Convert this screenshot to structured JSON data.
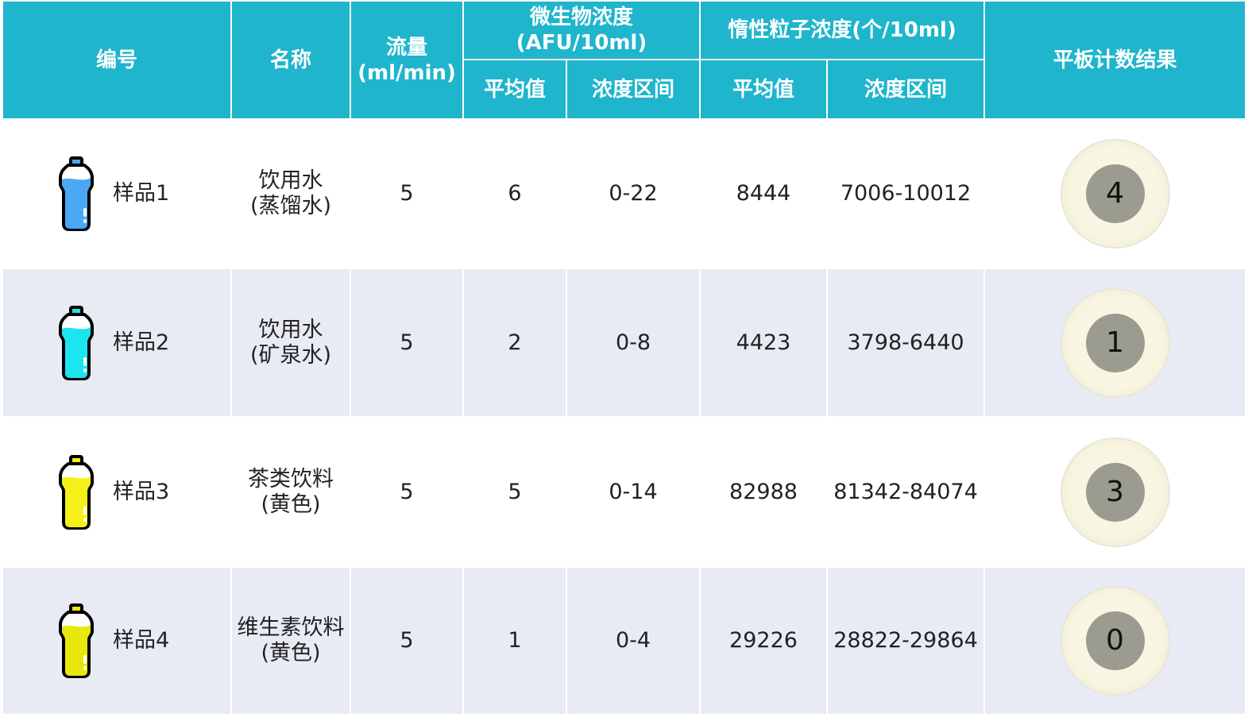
{
  "header": {
    "id": "编号",
    "name": "名称",
    "flow": "流量\n(ml/min)",
    "micro": "微生物浓度\n(AFU/10ml)",
    "inert": "惰性粒子浓度(个/10ml)",
    "plate": "平板计数结果",
    "avg": "平均值",
    "range": "浓度区间",
    "avg2": "平均值",
    "range2": "浓度区间"
  },
  "rows": [
    {
      "id": "样品1",
      "name": "饮用水\n(蒸馏水)",
      "flow": "5",
      "micro_avg": "6",
      "micro_range": "0-22",
      "inert_avg": "8444",
      "inert_range": "7006-10012",
      "plate": "4",
      "bottle_color": "#4aa8f5"
    },
    {
      "id": "样品2",
      "name": "饮用水\n(矿泉水)",
      "flow": "5",
      "micro_avg": "2",
      "micro_range": "0-8",
      "inert_avg": "4423",
      "inert_range": "3798-6440",
      "plate": "1",
      "bottle_color": "#1de5f0"
    },
    {
      "id": "样品3",
      "name": "茶类饮料\n(黄色)",
      "flow": "5",
      "micro_avg": "5",
      "micro_range": "0-14",
      "inert_avg": "82988",
      "inert_range": "81342-84074",
      "plate": "3",
      "bottle_color": "#f5f01a"
    },
    {
      "id": "样品4",
      "name": "维生素饮料\n(黄色)",
      "flow": "5",
      "micro_avg": "1",
      "micro_range": "0-4",
      "inert_avg": "29226",
      "inert_range": "28822-29864",
      "plate": "0",
      "bottle_color": "#e8e80a"
    }
  ],
  "colors": {
    "header": "#1fb5cc",
    "alt_row": "#e8eaf4"
  }
}
